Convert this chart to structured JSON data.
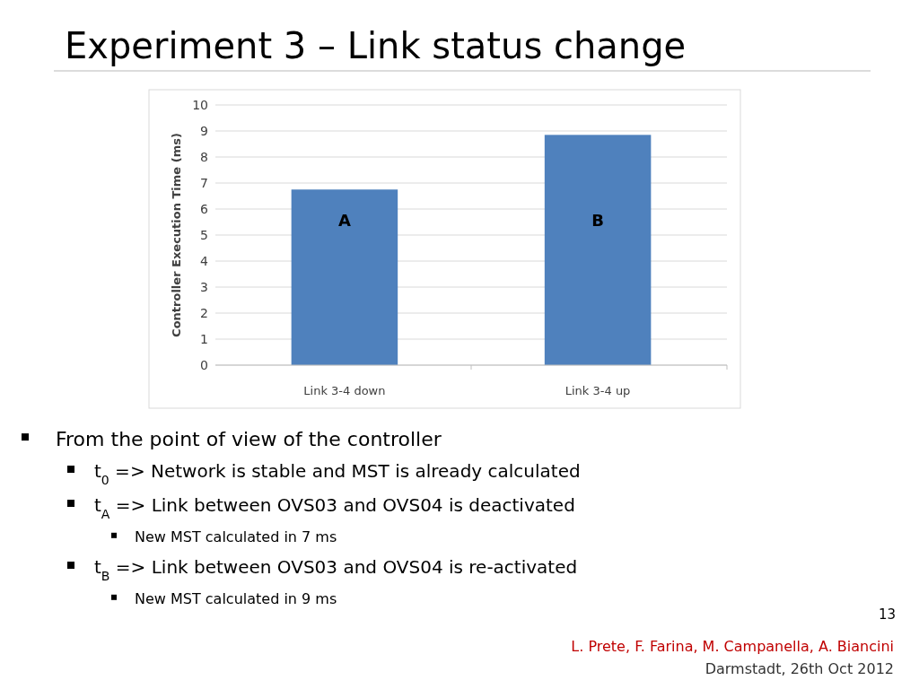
{
  "chart_data": {
    "type": "bar",
    "title": "Experiment 3 – Link status change",
    "ylabel": "Controller Execution Time (ms)",
    "categories": [
      "Link 3-4 down",
      "Link 3-4 up"
    ],
    "values": [
      6.75,
      8.85
    ],
    "color": "#4f81bd",
    "ylim": [
      0,
      10
    ],
    "yticks": [
      0,
      1,
      2,
      3,
      4,
      5,
      6,
      7,
      8,
      9,
      10
    ],
    "grid": "y",
    "annotations": [
      "A",
      "B",
      "From the point of view of the controller",
      "t$_{0}$  => Network is stable and MST is already calculated",
      "t$_{A}$  => Link between OVS03 and OVS04 is deactivated",
      "New MST calculated in 7 ms",
      "t$_{B}$  => Link between OVS03 and OVS04 is re-activated",
      "New MST calculated in 9 ms",
      "13",
      "L. Prete, F. Farina, M. Campanella, A. Biancini",
      "Darmstadt, 26th Oct 2012"
    ]
  }
}
